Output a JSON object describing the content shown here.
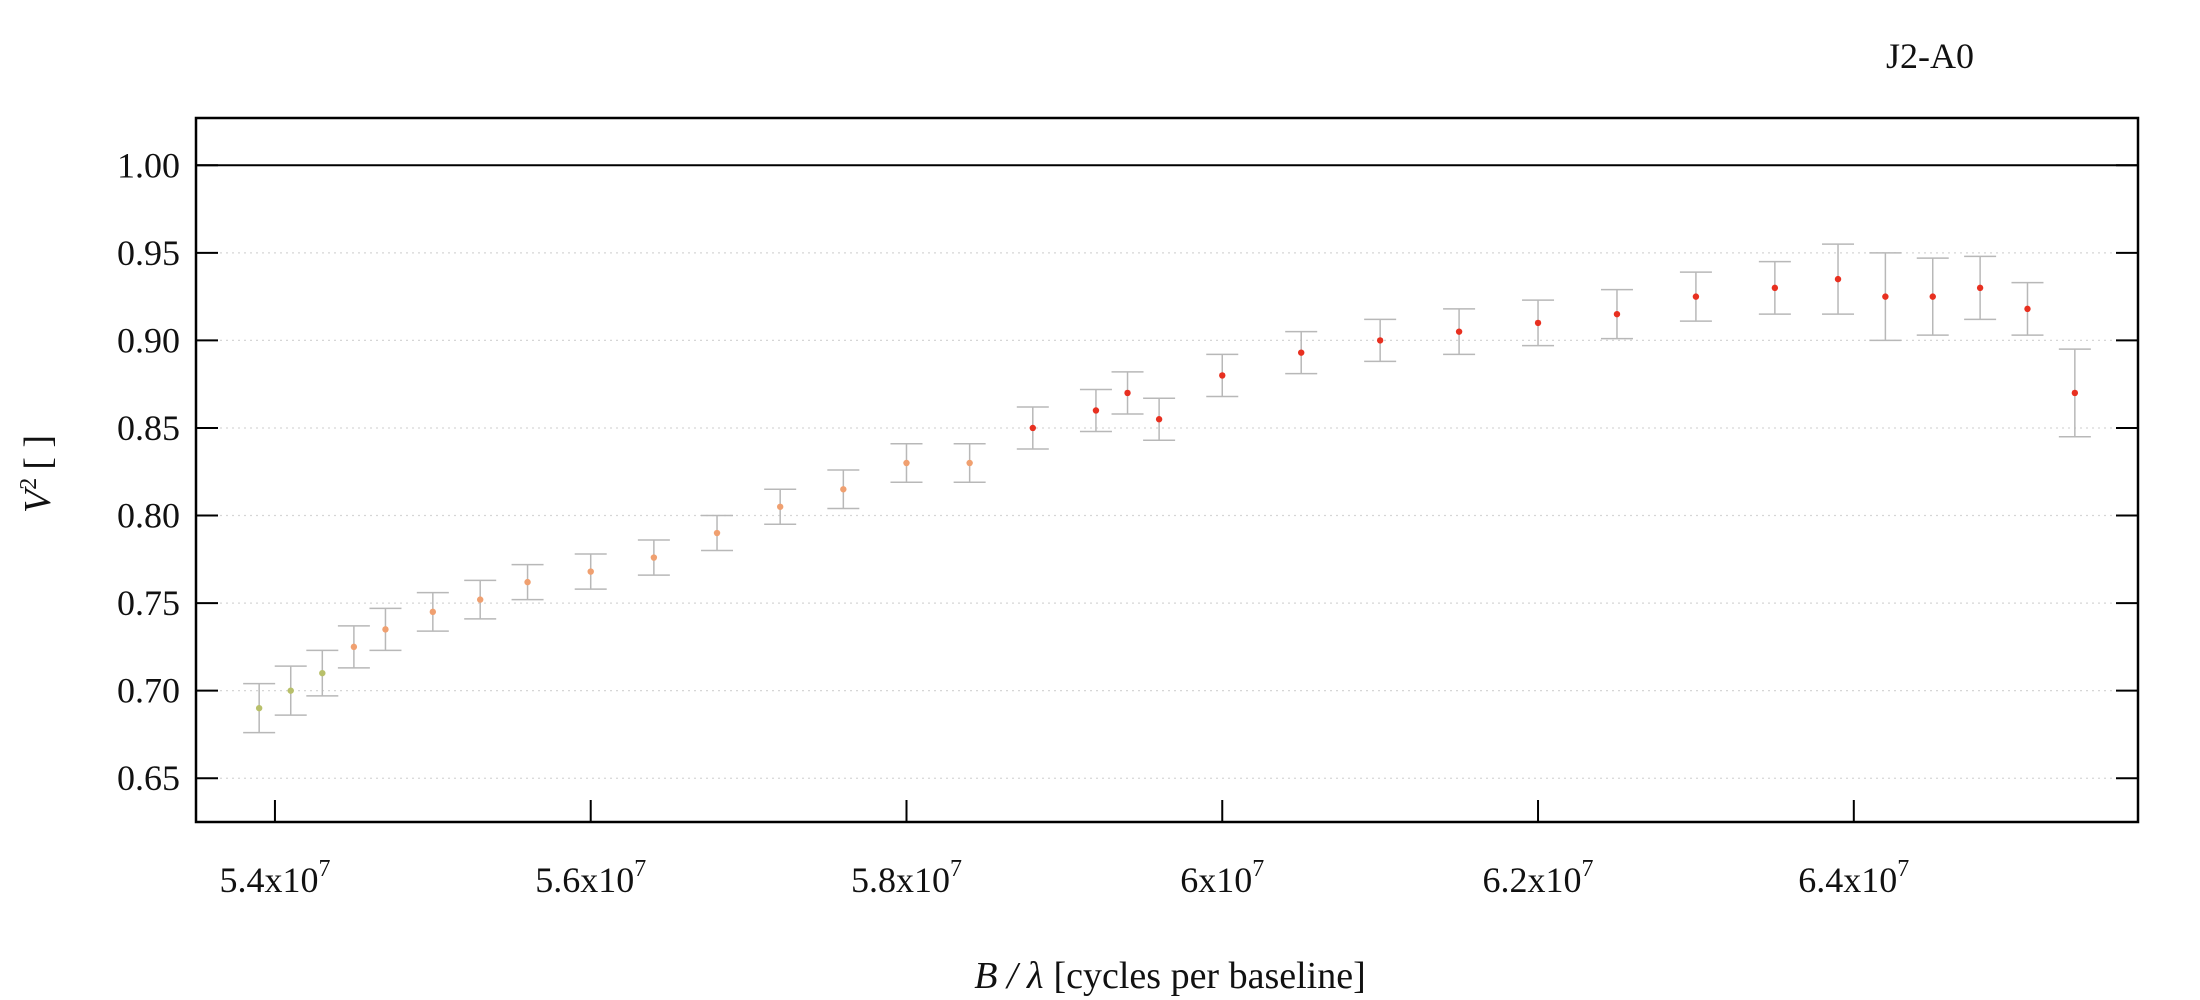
{
  "chart_data": {
    "type": "scatter",
    "title": "J2-A0",
    "xlabel": {
      "var": "B / λ",
      "unit": "[cycles per baseline]"
    },
    "ylabel": {
      "var": "V",
      "sup": "2",
      "unit": "[ ]"
    },
    "xlim": [
      53500000,
      65800000
    ],
    "ylim": [
      0.625,
      1.027
    ],
    "x_ticks": [
      {
        "value": 54000000,
        "mant": "5.4x10",
        "exp": "7"
      },
      {
        "value": 56000000,
        "mant": "5.6x10",
        "exp": "7"
      },
      {
        "value": 58000000,
        "mant": "5.8x10",
        "exp": "7"
      },
      {
        "value": 60000000,
        "mant": "6x10",
        "exp": "7"
      },
      {
        "value": 62000000,
        "mant": "6.2x10",
        "exp": "7"
      },
      {
        "value": 64000000,
        "mant": "6.4x10",
        "exp": "7"
      }
    ],
    "y_ticks": [
      {
        "value": 0.65,
        "label": "0.65"
      },
      {
        "value": 0.7,
        "label": "0.70"
      },
      {
        "value": 0.75,
        "label": "0.75"
      },
      {
        "value": 0.8,
        "label": "0.80"
      },
      {
        "value": 0.85,
        "label": "0.85"
      },
      {
        "value": 0.9,
        "label": "0.90"
      },
      {
        "value": 0.95,
        "label": "0.95"
      },
      {
        "value": 1.0,
        "label": "1.00"
      }
    ],
    "reference_line": 1.0,
    "grid": "horizontal dotted",
    "colors": {
      "low_x": "#b8c06a",
      "mid_x": "#f0a070",
      "high_x": "#e83020",
      "errorbar": "#b8b8b8"
    },
    "series": [
      {
        "x": [
          53900000,
          54100000,
          54300000,
          54500000,
          54700000,
          55000000,
          55300000,
          55600000,
          56000000,
          56400000,
          56800000,
          57200000,
          57600000,
          58000000,
          58400000,
          58800000,
          59200000,
          59400000,
          59600000,
          60000000,
          60500000,
          61000000,
          61500000,
          62000000,
          62500000,
          63000000,
          63500000,
          63900000,
          64200000,
          64500000,
          64800000,
          65100000,
          65400000
        ],
        "y": [
          0.69,
          0.7,
          0.71,
          0.725,
          0.735,
          0.745,
          0.752,
          0.762,
          0.768,
          0.776,
          0.79,
          0.805,
          0.815,
          0.83,
          0.83,
          0.85,
          0.86,
          0.87,
          0.855,
          0.88,
          0.893,
          0.9,
          0.905,
          0.91,
          0.915,
          0.925,
          0.93,
          0.935,
          0.925,
          0.925,
          0.93,
          0.918,
          0.87
        ],
        "yerr": [
          0.014,
          0.014,
          0.013,
          0.012,
          0.012,
          0.011,
          0.011,
          0.01,
          0.01,
          0.01,
          0.01,
          0.01,
          0.011,
          0.011,
          0.011,
          0.012,
          0.012,
          0.012,
          0.012,
          0.012,
          0.012,
          0.012,
          0.013,
          0.013,
          0.014,
          0.014,
          0.015,
          0.02,
          0.025,
          0.022,
          0.018,
          0.015,
          0.025
        ]
      }
    ]
  }
}
